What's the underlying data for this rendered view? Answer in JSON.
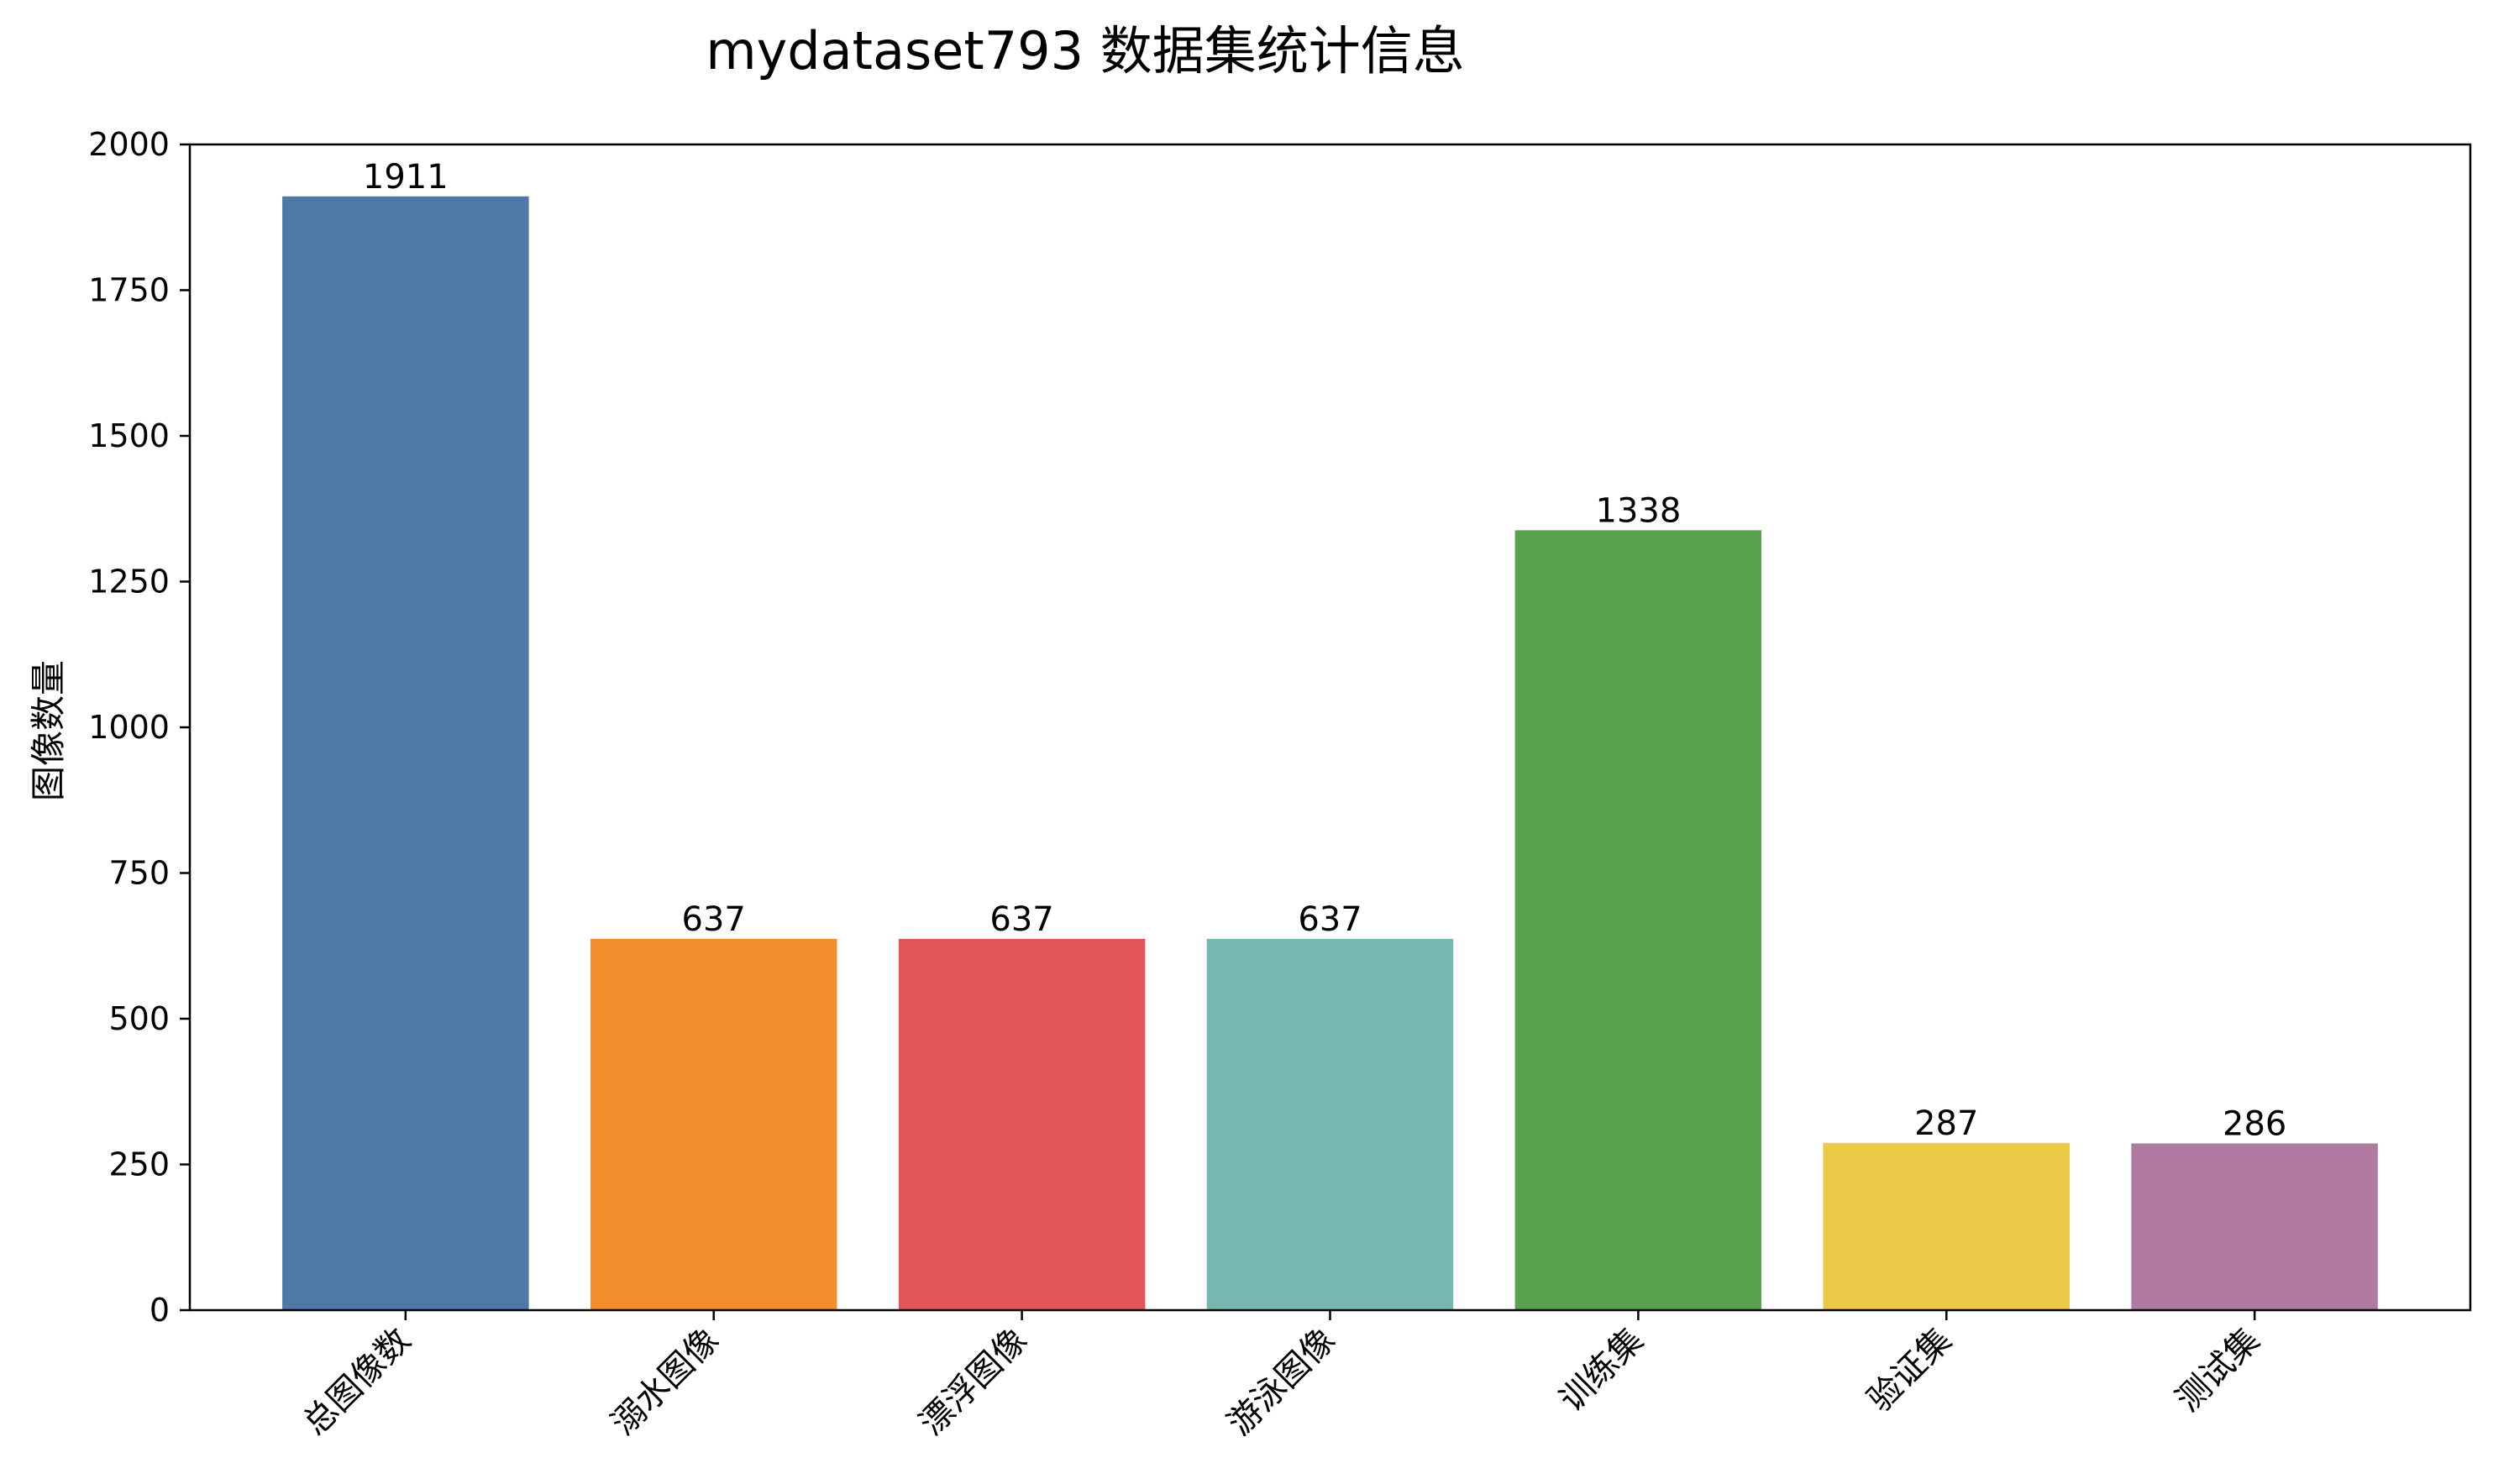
{
  "chart_data": {
    "type": "bar",
    "title": "mydataset793 数据集统计信息",
    "xlabel": "",
    "ylabel": "图像数量",
    "categories": [
      "总图像数",
      "溺水图像",
      "漂浮图像",
      "游泳图像",
      "训练集",
      "验证集",
      "测试集"
    ],
    "values": [
      1911,
      637,
      637,
      637,
      1338,
      287,
      286
    ],
    "colors": [
      "#4e79a7",
      "#f28e2b",
      "#e15759",
      "#76b7b2",
      "#59a14f",
      "#edc948",
      "#b07aa1"
    ],
    "ylim": [
      0,
      2000
    ],
    "yticks": [
      0,
      250,
      500,
      750,
      1000,
      1250,
      1500,
      1750,
      2000
    ],
    "grid": false,
    "legend": "none"
  }
}
